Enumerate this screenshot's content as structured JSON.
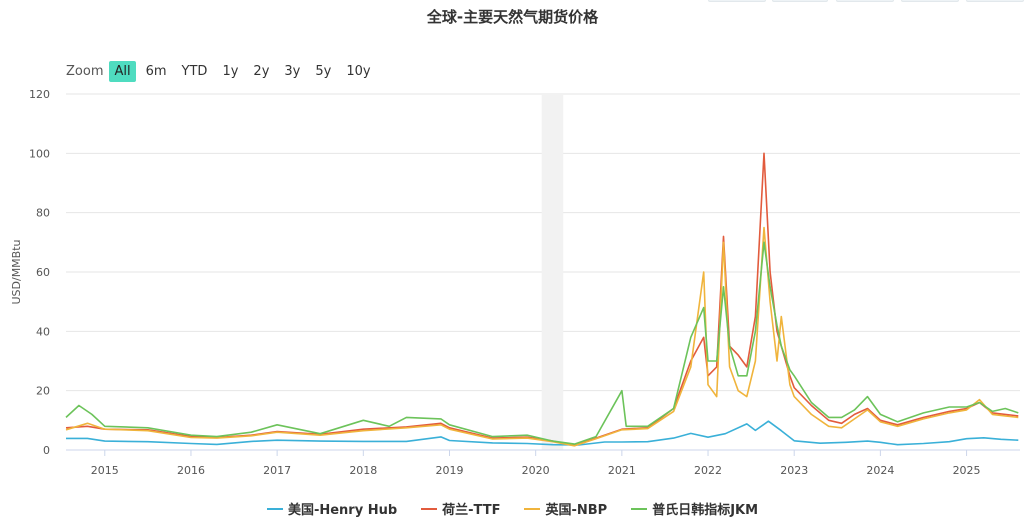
{
  "chart_data": {
    "type": "line",
    "title": "全球-主要天然气期货价格",
    "ylabel": "USD/MMBtu",
    "ylim": [
      0,
      120
    ],
    "yticks": [
      0,
      20,
      40,
      60,
      80,
      100,
      120
    ],
    "xlim": [
      2014.55,
      2025.62
    ],
    "xticks": [
      2015,
      2016,
      2017,
      2018,
      2019,
      2020,
      2021,
      2022,
      2023,
      2024,
      2025
    ],
    "xtick_labels": [
      "2015",
      "2016",
      "2017",
      "2018",
      "2019",
      "2020",
      "2021",
      "2022",
      "2023",
      "2024",
      "2025"
    ],
    "shaded_band": [
      2020.07,
      2020.32
    ],
    "grid": "horizontal",
    "legend_position": "bottom-center",
    "series": [
      {
        "name": "美国-Henry Hub",
        "color": "#3ab0d8",
        "points": [
          [
            2014.55,
            3.9
          ],
          [
            2014.8,
            3.9
          ],
          [
            2015.0,
            3.0
          ],
          [
            2015.5,
            2.8
          ],
          [
            2016.0,
            2.2
          ],
          [
            2016.3,
            1.9
          ],
          [
            2016.7,
            2.9
          ],
          [
            2017.0,
            3.3
          ],
          [
            2017.5,
            3.0
          ],
          [
            2018.0,
            2.9
          ],
          [
            2018.5,
            2.9
          ],
          [
            2018.9,
            4.4
          ],
          [
            2019.0,
            3.2
          ],
          [
            2019.5,
            2.4
          ],
          [
            2019.9,
            2.2
          ],
          [
            2020.2,
            1.8
          ],
          [
            2020.5,
            1.7
          ],
          [
            2020.8,
            2.7
          ],
          [
            2021.0,
            2.7
          ],
          [
            2021.3,
            2.8
          ],
          [
            2021.6,
            4.0
          ],
          [
            2021.8,
            5.6
          ],
          [
            2022.0,
            4.3
          ],
          [
            2022.2,
            5.5
          ],
          [
            2022.45,
            8.8
          ],
          [
            2022.55,
            6.6
          ],
          [
            2022.7,
            9.7
          ],
          [
            2022.85,
            6.5
          ],
          [
            2023.0,
            3.1
          ],
          [
            2023.3,
            2.3
          ],
          [
            2023.6,
            2.6
          ],
          [
            2023.85,
            3.0
          ],
          [
            2024.0,
            2.6
          ],
          [
            2024.2,
            1.8
          ],
          [
            2024.5,
            2.2
          ],
          [
            2024.8,
            2.8
          ],
          [
            2025.0,
            3.8
          ],
          [
            2025.2,
            4.1
          ],
          [
            2025.4,
            3.6
          ],
          [
            2025.6,
            3.3
          ]
        ]
      },
      {
        "name": "荷兰-TTF",
        "color": "#e25b3d",
        "points": [
          [
            2014.55,
            7.5
          ],
          [
            2014.8,
            8.0
          ],
          [
            2015.0,
            7.0
          ],
          [
            2015.5,
            6.8
          ],
          [
            2016.0,
            4.5
          ],
          [
            2016.3,
            4.2
          ],
          [
            2016.7,
            5.0
          ],
          [
            2017.0,
            6.2
          ],
          [
            2017.5,
            5.3
          ],
          [
            2018.0,
            7.0
          ],
          [
            2018.5,
            7.8
          ],
          [
            2018.9,
            9.0
          ],
          [
            2019.0,
            7.5
          ],
          [
            2019.5,
            4.0
          ],
          [
            2019.9,
            4.3
          ],
          [
            2020.2,
            3.0
          ],
          [
            2020.45,
            1.5
          ],
          [
            2020.7,
            4.0
          ],
          [
            2021.0,
            7.0
          ],
          [
            2021.3,
            7.5
          ],
          [
            2021.6,
            14.0
          ],
          [
            2021.8,
            30.0
          ],
          [
            2021.95,
            38.0
          ],
          [
            2022.0,
            25.0
          ],
          [
            2022.1,
            28.0
          ],
          [
            2022.18,
            72.0
          ],
          [
            2022.25,
            35.0
          ],
          [
            2022.35,
            32.0
          ],
          [
            2022.45,
            28.0
          ],
          [
            2022.55,
            45.0
          ],
          [
            2022.65,
            100.0
          ],
          [
            2022.72,
            60.0
          ],
          [
            2022.8,
            40.0
          ],
          [
            2022.85,
            35.0
          ],
          [
            2022.95,
            25.0
          ],
          [
            2023.0,
            21.0
          ],
          [
            2023.2,
            15.0
          ],
          [
            2023.4,
            10.0
          ],
          [
            2023.55,
            9.0
          ],
          [
            2023.7,
            12.0
          ],
          [
            2023.85,
            14.0
          ],
          [
            2024.0,
            10.0
          ],
          [
            2024.2,
            8.5
          ],
          [
            2024.5,
            11.0
          ],
          [
            2024.8,
            13.0
          ],
          [
            2025.0,
            14.0
          ],
          [
            2025.15,
            16.0
          ],
          [
            2025.3,
            12.5
          ],
          [
            2025.45,
            12.0
          ],
          [
            2025.6,
            11.5
          ]
        ]
      },
      {
        "name": "英国-NBP",
        "color": "#f0b43c",
        "points": [
          [
            2014.55,
            6.8
          ],
          [
            2014.8,
            9.0
          ],
          [
            2015.0,
            7.0
          ],
          [
            2015.5,
            6.5
          ],
          [
            2016.0,
            4.2
          ],
          [
            2016.3,
            4.0
          ],
          [
            2016.7,
            4.8
          ],
          [
            2017.0,
            6.0
          ],
          [
            2017.5,
            5.0
          ],
          [
            2018.0,
            6.5
          ],
          [
            2018.5,
            7.5
          ],
          [
            2018.9,
            8.5
          ],
          [
            2019.0,
            7.0
          ],
          [
            2019.5,
            3.7
          ],
          [
            2019.9,
            4.0
          ],
          [
            2020.2,
            2.8
          ],
          [
            2020.45,
            1.4
          ],
          [
            2020.7,
            3.8
          ],
          [
            2021.0,
            6.8
          ],
          [
            2021.3,
            7.2
          ],
          [
            2021.6,
            13.0
          ],
          [
            2021.8,
            28.0
          ],
          [
            2021.95,
            60.0
          ],
          [
            2022.0,
            22.0
          ],
          [
            2022.1,
            18.0
          ],
          [
            2022.18,
            70.0
          ],
          [
            2022.25,
            28.0
          ],
          [
            2022.35,
            20.0
          ],
          [
            2022.45,
            18.0
          ],
          [
            2022.55,
            30.0
          ],
          [
            2022.65,
            75.0
          ],
          [
            2022.72,
            50.0
          ],
          [
            2022.8,
            30.0
          ],
          [
            2022.85,
            45.0
          ],
          [
            2022.95,
            22.0
          ],
          [
            2023.0,
            18.0
          ],
          [
            2023.2,
            12.0
          ],
          [
            2023.4,
            8.0
          ],
          [
            2023.55,
            7.5
          ],
          [
            2023.7,
            10.5
          ],
          [
            2023.85,
            13.5
          ],
          [
            2024.0,
            9.5
          ],
          [
            2024.2,
            8.0
          ],
          [
            2024.5,
            10.5
          ],
          [
            2024.8,
            12.5
          ],
          [
            2025.0,
            13.5
          ],
          [
            2025.15,
            17.0
          ],
          [
            2025.3,
            12.0
          ],
          [
            2025.45,
            11.5
          ],
          [
            2025.6,
            11.0
          ]
        ]
      },
      {
        "name": "普氏日韩指标JKM",
        "color": "#6cc35a",
        "points": [
          [
            2014.55,
            11.0
          ],
          [
            2014.7,
            15.0
          ],
          [
            2014.85,
            12.0
          ],
          [
            2015.0,
            8.0
          ],
          [
            2015.5,
            7.5
          ],
          [
            2016.0,
            5.0
          ],
          [
            2016.3,
            4.5
          ],
          [
            2016.7,
            6.0
          ],
          [
            2017.0,
            8.5
          ],
          [
            2017.5,
            5.5
          ],
          [
            2018.0,
            10.0
          ],
          [
            2018.3,
            8.0
          ],
          [
            2018.5,
            11.0
          ],
          [
            2018.9,
            10.5
          ],
          [
            2019.0,
            8.5
          ],
          [
            2019.5,
            4.5
          ],
          [
            2019.9,
            5.0
          ],
          [
            2020.2,
            3.0
          ],
          [
            2020.45,
            2.0
          ],
          [
            2020.7,
            4.5
          ],
          [
            2021.0,
            20.0
          ],
          [
            2021.05,
            8.0
          ],
          [
            2021.3,
            8.0
          ],
          [
            2021.6,
            14.0
          ],
          [
            2021.8,
            38.0
          ],
          [
            2021.95,
            48.0
          ],
          [
            2022.0,
            30.0
          ],
          [
            2022.1,
            30.0
          ],
          [
            2022.18,
            55.0
          ],
          [
            2022.25,
            35.0
          ],
          [
            2022.35,
            25.0
          ],
          [
            2022.45,
            25.0
          ],
          [
            2022.55,
            40.0
          ],
          [
            2022.65,
            70.0
          ],
          [
            2022.72,
            55.0
          ],
          [
            2022.8,
            42.0
          ],
          [
            2022.85,
            35.0
          ],
          [
            2022.95,
            27.0
          ],
          [
            2023.0,
            25.0
          ],
          [
            2023.2,
            16.0
          ],
          [
            2023.4,
            11.0
          ],
          [
            2023.55,
            11.0
          ],
          [
            2023.7,
            13.5
          ],
          [
            2023.85,
            18.0
          ],
          [
            2024.0,
            12.0
          ],
          [
            2024.2,
            9.5
          ],
          [
            2024.5,
            12.5
          ],
          [
            2024.8,
            14.5
          ],
          [
            2025.0,
            14.5
          ],
          [
            2025.15,
            16.0
          ],
          [
            2025.3,
            13.0
          ],
          [
            2025.45,
            14.0
          ],
          [
            2025.6,
            12.5
          ]
        ]
      }
    ]
  },
  "zoom": {
    "label": "Zoom",
    "buttons": [
      "All",
      "6m",
      "YTD",
      "1y",
      "2y",
      "3y",
      "5y",
      "10y"
    ],
    "active": "All"
  },
  "colors": {
    "active_button": "#4fdcc0",
    "grid": "#e6e6e6",
    "band": "#f2f2f2"
  }
}
